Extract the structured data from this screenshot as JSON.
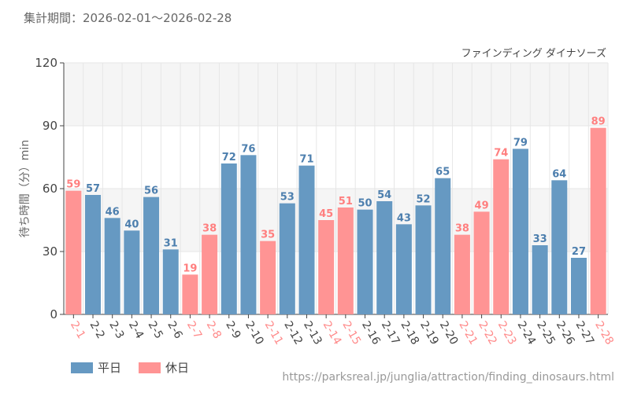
{
  "header": {
    "period": "集計期間：2026-02-01～2026-02-28"
  },
  "footer": {
    "url": "https://parksreal.jp/junglia/attraction/finding_dinosaurs.html"
  },
  "legend": [
    {
      "label": "平日",
      "color": "#6699c2"
    },
    {
      "label": "休日",
      "color": "#ff9494"
    }
  ],
  "chart_data": {
    "type": "bar",
    "title": "ファインディング ダイナソーズ",
    "ylabel": "待ち時間（分）min",
    "xlabel": "",
    "ylim": [
      0,
      120
    ],
    "yticks": [
      0,
      30,
      60,
      90,
      120
    ],
    "grid": true,
    "legend_placement": "bottom-left",
    "categories": [
      "2-1",
      "2-2",
      "2-3",
      "2-4",
      "2-5",
      "2-6",
      "2-7",
      "2-8",
      "2-9",
      "2-10",
      "2-11",
      "2-12",
      "2-13",
      "2-14",
      "2-15",
      "2-16",
      "2-17",
      "2-18",
      "2-19",
      "2-20",
      "2-21",
      "2-22",
      "2-23",
      "2-24",
      "2-25",
      "2-26",
      "2-27",
      "2-28"
    ],
    "values": [
      59,
      57,
      46,
      40,
      56,
      31,
      19,
      38,
      72,
      76,
      35,
      53,
      71,
      45,
      51,
      50,
      54,
      43,
      52,
      65,
      38,
      49,
      74,
      79,
      33,
      64,
      27,
      89
    ],
    "day_type": [
      "休日",
      "平日",
      "平日",
      "平日",
      "平日",
      "平日",
      "休日",
      "休日",
      "平日",
      "平日",
      "休日",
      "平日",
      "平日",
      "休日",
      "休日",
      "平日",
      "平日",
      "平日",
      "平日",
      "平日",
      "休日",
      "休日",
      "休日",
      "平日",
      "平日",
      "平日",
      "平日",
      "休日"
    ],
    "colors": {
      "平日": "#6699c2",
      "休日": "#ff9494"
    }
  }
}
